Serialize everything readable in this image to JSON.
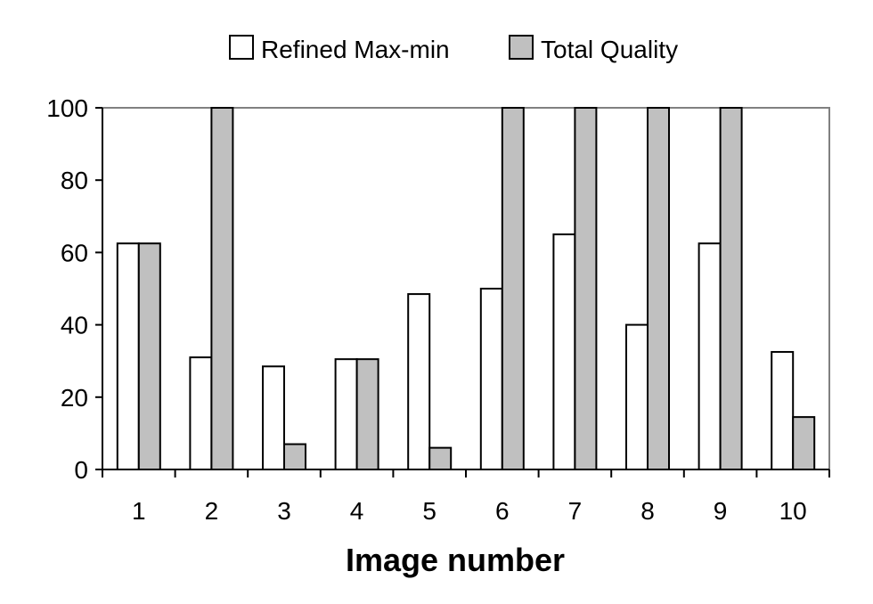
{
  "chart_data": {
    "type": "bar",
    "title": "",
    "xlabel": "Image number",
    "ylabel": "",
    "categories": [
      "1",
      "2",
      "3",
      "4",
      "5",
      "6",
      "7",
      "8",
      "9",
      "10"
    ],
    "series": [
      {
        "name": "Refined Max-min",
        "color": "#ffffff",
        "values": [
          62.5,
          31,
          28.5,
          30.5,
          48.5,
          50,
          65,
          40,
          62.5,
          32.5
        ]
      },
      {
        "name": "Total Quality",
        "color": "#c0c0c0",
        "values": [
          62.5,
          100,
          7,
          30.5,
          6,
          100,
          100,
          100,
          100,
          14.5
        ]
      }
    ],
    "ylim": [
      0,
      100
    ],
    "yticks": [
      0,
      20,
      40,
      60,
      80,
      100
    ],
    "grid": false,
    "legend_position": "top-center"
  }
}
